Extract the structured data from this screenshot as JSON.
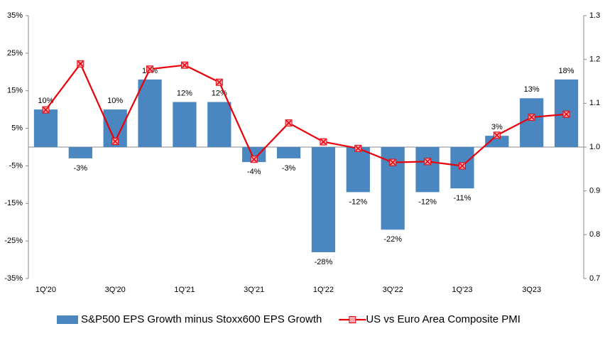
{
  "chart_data": {
    "type": "combo",
    "categories": [
      "1Q'20",
      null,
      "3Q'20",
      null,
      "1Q'21",
      null,
      "3Q'21",
      null,
      "1Q'22",
      null,
      "3Q'22",
      null,
      "1Q'23",
      null,
      "3Q23",
      null
    ],
    "series": [
      {
        "name": "S&P500 EPS Growth minus Stoxx600 EPS Growth",
        "type": "bar",
        "color": "#4a86c0",
        "values": [
          10,
          -3,
          10,
          18,
          12,
          12,
          -4,
          -3,
          -28,
          -12,
          -22,
          -12,
          -11,
          3,
          13,
          18
        ],
        "value_labels": [
          "10%",
          "-3%",
          "10%",
          "18%",
          "12%",
          "12%",
          "-4%",
          "-3%",
          "-28%",
          "-12%",
          "-22%",
          "-12%",
          "-11%",
          "3%",
          "13%",
          "18%"
        ]
      },
      {
        "name": "US vs Euro Area Composite PMI",
        "type": "line",
        "axis": "y2",
        "color": "#e8000b",
        "values": [
          1.085,
          1.19,
          1.013,
          1.178,
          1.187,
          1.148,
          0.972,
          1.055,
          1.012,
          0.997,
          0.965,
          0.967,
          0.957,
          1.027,
          1.068,
          1.075
        ]
      }
    ],
    "ylim": [
      -35,
      35
    ],
    "yticks": [
      {
        "value": -35,
        "label": "-35%"
      },
      {
        "value": -25,
        "label": "-25%"
      },
      {
        "value": -15,
        "label": "-15%"
      },
      {
        "value": -5,
        "label": "-5%"
      },
      {
        "value": 5,
        "label": "5%"
      },
      {
        "value": 15,
        "label": "15%"
      },
      {
        "value": 25,
        "label": "25%"
      },
      {
        "value": 35,
        "label": "35%"
      }
    ],
    "y2lim": [
      0.7,
      1.3
    ],
    "y2ticks": [
      0.7,
      0.8,
      0.9,
      {
        "value": 1,
        "label": "1.0"
      },
      1.1,
      1.2,
      1.3
    ],
    "legend": "bottom"
  }
}
